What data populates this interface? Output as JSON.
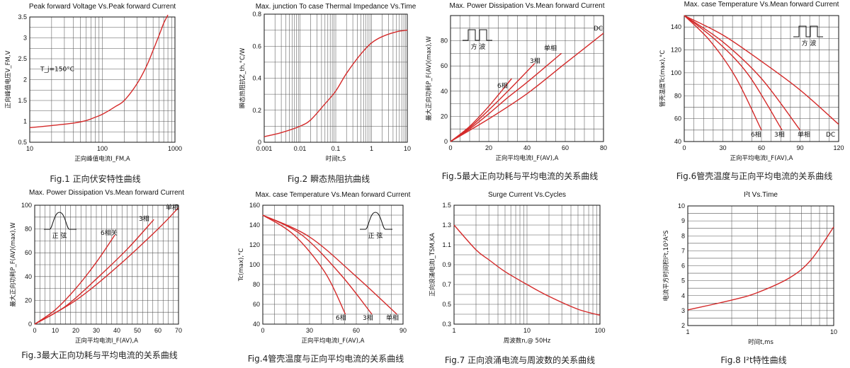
{
  "chart_data": [
    {
      "id": "c1",
      "type": "line",
      "title": "Peak forward Voltage Vs.Peak forward Current",
      "caption": "Fig.1 正向伏安特性曲线",
      "xlabel": "正向峰值电流I_FM,A",
      "ylabel": "正向峰值电压V_FM,V",
      "xscale": "log",
      "xlim": [
        10,
        1000
      ],
      "ylim": [
        0.5,
        3.5
      ],
      "xticks": [
        10,
        100,
        1000
      ],
      "xtick_labels": [
        "10",
        "100",
        "1000"
      ],
      "yticks": [
        0.5,
        1,
        1.5,
        2,
        2.5,
        3,
        3.5
      ],
      "ytick_labels": [
        "0.5",
        "1",
        "1.5",
        "2",
        "2.5",
        "3",
        "3.5"
      ],
      "annotations": [
        {
          "text": "T_j=150°C",
          "x": 14,
          "y": 2.2
        }
      ],
      "series": [
        {
          "x": [
            10,
            20,
            40,
            60,
            80,
            100,
            150,
            200,
            300,
            400,
            500,
            600,
            700,
            800
          ],
          "values": [
            0.85,
            0.9,
            0.96,
            1.02,
            1.1,
            1.17,
            1.35,
            1.5,
            1.9,
            2.3,
            2.7,
            3.05,
            3.35,
            3.55
          ]
        }
      ]
    },
    {
      "id": "c2",
      "type": "line",
      "title": "Max. junction To case Thermal Impedance Vs.Time",
      "caption": "Fig.2 瞬态热阻抗曲线",
      "xlabel": "时间t,S",
      "ylabel": "瞬态热阻抗Z_th,°C/W",
      "xscale": "log",
      "xlim": [
        0.001,
        10
      ],
      "ylim": [
        0,
        0.8
      ],
      "xticks": [
        0.001,
        0.01,
        0.1,
        1,
        10
      ],
      "xtick_labels": [
        "0.001",
        "0.01",
        "0.1",
        "1",
        "10"
      ],
      "yticks": [
        0,
        0.2,
        0.4,
        0.6,
        0.8
      ],
      "ytick_labels": [
        "0",
        "0.2",
        "0.4",
        "0.6",
        "0.8"
      ],
      "series": [
        {
          "x": [
            0.001,
            0.003,
            0.01,
            0.02,
            0.05,
            0.1,
            0.2,
            0.5,
            1,
            2,
            5,
            10
          ],
          "values": [
            0.035,
            0.06,
            0.1,
            0.14,
            0.24,
            0.32,
            0.43,
            0.55,
            0.62,
            0.66,
            0.69,
            0.7
          ]
        }
      ]
    },
    {
      "id": "c5",
      "type": "line",
      "title": "Max. Power Dissipation Vs.Mean forward Current",
      "caption": "Fig.5最大正向功耗与平均电流的关系曲线",
      "xlabel": "正向平均电流I_F(AV),A",
      "ylabel": "最大正向功耗P_F(AV)(max),W",
      "xlim": [
        0,
        80
      ],
      "ylim": [
        0,
        100
      ],
      "xticks": [
        0,
        20,
        40,
        60,
        80
      ],
      "xtick_labels": [
        "0",
        "20",
        "40",
        "60",
        "80"
      ],
      "yticks": [
        0,
        20,
        40,
        60,
        80
      ],
      "ytick_labels": [
        "0",
        "20",
        "40",
        "60",
        "80"
      ],
      "inset_label": "方  波",
      "series": [
        {
          "name": "6相",
          "x": [
            0,
            10,
            20,
            32
          ],
          "values": [
            0,
            12,
            28,
            50
          ]
        },
        {
          "name": "3相",
          "x": [
            0,
            10,
            20,
            30,
            44
          ],
          "values": [
            0,
            11,
            25,
            40,
            62
          ]
        },
        {
          "name": "单相",
          "x": [
            0,
            10,
            20,
            30,
            40,
            58
          ],
          "values": [
            0,
            10,
            22,
            35,
            47,
            70
          ]
        },
        {
          "name": "DC",
          "x": [
            0,
            20,
            40,
            60,
            80
          ],
          "values": [
            0,
            18,
            38,
            62,
            86
          ]
        }
      ]
    },
    {
      "id": "c6",
      "type": "line",
      "title": "Max. case Temperature Vs.Mean forward Current",
      "caption": "Fig.6管壳温度与正向平均电流的关系曲线",
      "xlabel": "正向平均电流I_F(AV),A",
      "ylabel": "管壳温度Tc(max),°C",
      "xlim": [
        0,
        120
      ],
      "ylim": [
        40,
        150
      ],
      "xticks": [
        0,
        30,
        60,
        90,
        120
      ],
      "xtick_labels": [
        "0",
        "30",
        "60",
        "90",
        "120"
      ],
      "yticks": [
        40,
        60,
        80,
        100,
        120,
        140
      ],
      "ytick_labels": [
        "40",
        "60",
        "80",
        "100",
        "120",
        "140"
      ],
      "inset_label": "方  波",
      "series": [
        {
          "name": "6相",
          "x": [
            0,
            20,
            40,
            60
          ],
          "values": [
            150,
            128,
            96,
            50
          ]
        },
        {
          "name": "3相",
          "x": [
            0,
            25,
            50,
            76
          ],
          "values": [
            150,
            128,
            98,
            50
          ]
        },
        {
          "name": "单相",
          "x": [
            0,
            30,
            60,
            90
          ],
          "values": [
            150,
            127,
            95,
            50
          ]
        },
        {
          "name": "DC",
          "x": [
            0,
            30,
            60,
            90,
            120
          ],
          "values": [
            150,
            133,
            110,
            85,
            55
          ]
        }
      ]
    },
    {
      "id": "c3",
      "type": "line",
      "title": "Max. Power Dissipation Vs.Mean forward Current",
      "caption": "Fig.3最大正向功耗与平均电流的关系曲线",
      "xlabel": "正向平均电流I_F(AV),A",
      "ylabel": "最大正向功耗P_F(AV)(max),W",
      "xlim": [
        0,
        70
      ],
      "ylim": [
        0,
        100
      ],
      "xticks": [
        0,
        10,
        20,
        30,
        40,
        50,
        60,
        70
      ],
      "xtick_labels": [
        "0",
        "10",
        "20",
        "30",
        "40",
        "50",
        "60",
        "70"
      ],
      "yticks": [
        0,
        20,
        40,
        60,
        80,
        100
      ],
      "ytick_labels": [
        "0",
        "20",
        "40",
        "60",
        "80",
        "100"
      ],
      "inset_label": "正  弦",
      "series": [
        {
          "name": "6相关",
          "x": [
            0,
            10,
            20,
            30,
            39
          ],
          "values": [
            0,
            12,
            30,
            52,
            75
          ]
        },
        {
          "name": "3相",
          "x": [
            0,
            15,
            30,
            45,
            58
          ],
          "values": [
            0,
            15,
            38,
            63,
            88
          ]
        },
        {
          "name": "单相",
          "x": [
            0,
            20,
            40,
            60,
            70
          ],
          "values": [
            0,
            20,
            48,
            80,
            98
          ]
        }
      ]
    },
    {
      "id": "c4",
      "type": "line",
      "title": "Max. case Temperature Vs.Mean forward Current",
      "caption": "Fig.4管壳温度与正向平均电流的关系曲线",
      "xlabel": "正向平均电流I_F(AV),A",
      "ylabel": "Tc(max),°C",
      "xlim": [
        0,
        90
      ],
      "ylim": [
        40,
        160
      ],
      "xticks": [
        0,
        30,
        60,
        90
      ],
      "xtick_labels": [
        "0",
        "30",
        "60",
        "90"
      ],
      "yticks": [
        40,
        60,
        80,
        100,
        120,
        140,
        160
      ],
      "ytick_labels": [
        "40",
        "60",
        "80",
        "100",
        "120",
        "140",
        "160"
      ],
      "inset_label": "正  弦",
      "series": [
        {
          "name": "6相",
          "x": [
            0,
            20,
            40,
            53
          ],
          "values": [
            150,
            130,
            92,
            50
          ]
        },
        {
          "name": "3相",
          "x": [
            0,
            25,
            50,
            70
          ],
          "values": [
            150,
            130,
            90,
            50
          ]
        },
        {
          "name": "单相",
          "x": [
            0,
            30,
            60,
            86
          ],
          "values": [
            150,
            128,
            88,
            50
          ]
        }
      ]
    },
    {
      "id": "c7",
      "type": "line",
      "title": "Surge Current Vs.Cycles",
      "caption": "Fig.7 正向浪涌电流与周波数的关系曲线",
      "xlabel": "周波数n,@ 50Hz",
      "ylabel": "正向浪涌电流I_TSM,KA",
      "xscale": "log",
      "xlim": [
        1,
        100
      ],
      "ylim": [
        0.3,
        1.5
      ],
      "xticks": [
        1,
        10,
        100
      ],
      "xtick_labels": [
        "1",
        "10",
        "100"
      ],
      "yticks": [
        0.3,
        0.5,
        0.7,
        0.9,
        1.1,
        1.3,
        1.5
      ],
      "ytick_labels": [
        "0.3",
        "0.5",
        "0.7",
        "0.9",
        "1.1",
        "1.3",
        "1.5"
      ],
      "series": [
        {
          "x": [
            1,
            2,
            3,
            5,
            10,
            20,
            50,
            100
          ],
          "values": [
            1.3,
            1.05,
            0.95,
            0.83,
            0.7,
            0.58,
            0.45,
            0.39
          ]
        }
      ]
    },
    {
      "id": "c8",
      "type": "line",
      "title": "I²t Vs.Time",
      "caption": "Fig.8 I²t特性曲线",
      "xlabel": "时间t,ms",
      "ylabel": "电流平方时间积I²t,10³A²S",
      "xscale": "log",
      "xlim": [
        1,
        10
      ],
      "ylim": [
        2,
        10
      ],
      "xticks": [
        1,
        10
      ],
      "xtick_labels": [
        "1",
        "10"
      ],
      "yticks": [
        2,
        3,
        4,
        5,
        6,
        7,
        8,
        9,
        10
      ],
      "ytick_labels": [
        "2",
        "3",
        "4",
        "5",
        "6",
        "7",
        "8",
        "9",
        "10"
      ],
      "series": [
        {
          "x": [
            1,
            2,
            3,
            5,
            7,
            10
          ],
          "values": [
            3.05,
            3.7,
            4.2,
            5.2,
            6.4,
            8.6
          ]
        }
      ]
    }
  ]
}
